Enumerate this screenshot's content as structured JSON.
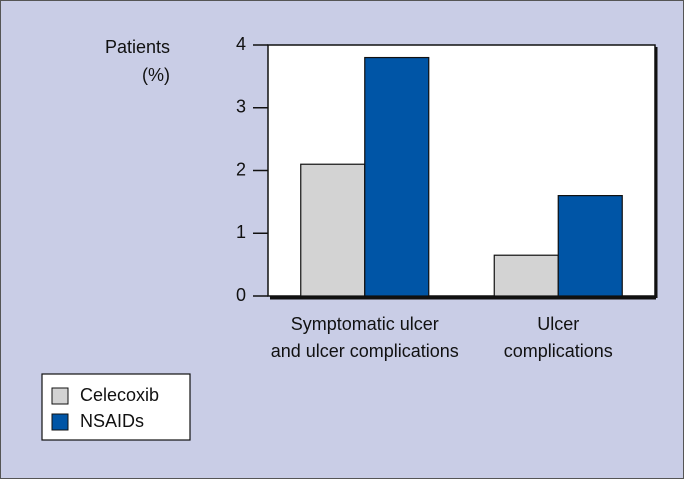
{
  "chart_data": {
    "type": "bar",
    "y_label": [
      "Patients",
      "(%)"
    ],
    "categories": [
      [
        "Symptomatic ulcer",
        "and ulcer complications"
      ],
      [
        "Ulcer",
        "complications"
      ]
    ],
    "series": [
      {
        "name": "Celecoxib",
        "color": "#d3d3d3",
        "values": [
          2.1,
          0.65
        ]
      },
      {
        "name": "NSAIDs",
        "color": "#0055a6",
        "values": [
          3.8,
          1.6
        ]
      }
    ],
    "ylim": [
      0,
      4
    ],
    "yticks": [
      0,
      1,
      2,
      3,
      4
    ],
    "grid": false,
    "legend": "bottom-left"
  }
}
